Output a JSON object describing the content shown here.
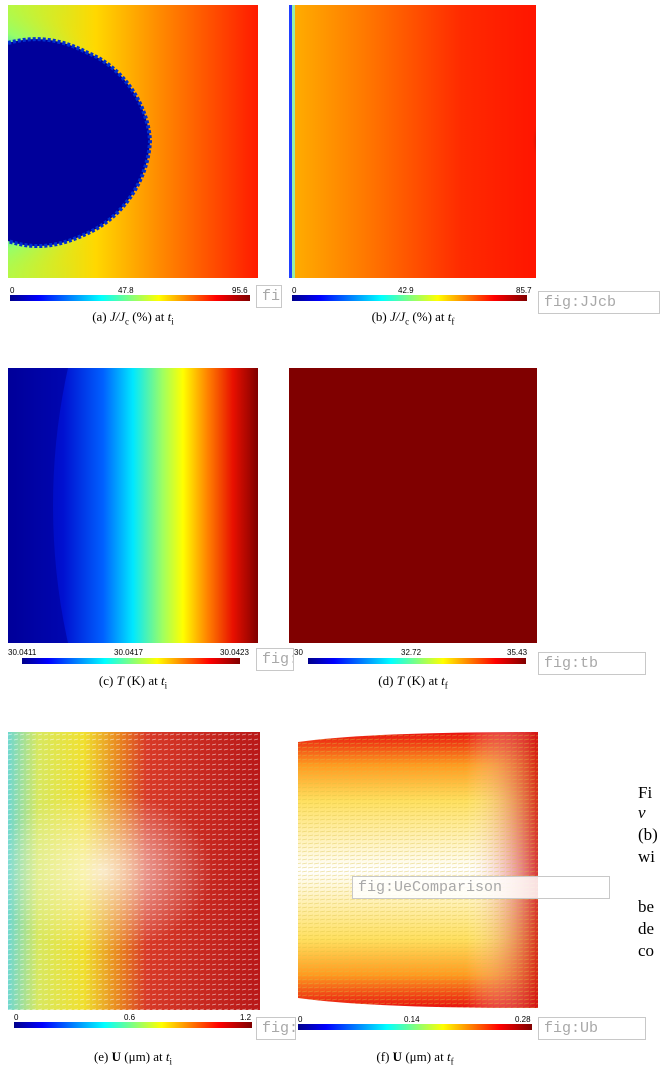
{
  "panels": {
    "a": {
      "colorbar": {
        "min": "0",
        "mid": "47.8",
        "max": "95.6"
      },
      "caption": {
        "label": "(a)",
        "quantity": "J/J",
        "qsub": "c",
        "unit": "(%) at",
        "time": "t",
        "tsub": "i"
      },
      "tag": "fig:JJca"
    },
    "b": {
      "colorbar": {
        "min": "0",
        "mid": "42.9",
        "max": "85.7"
      },
      "caption": {
        "label": "(b)",
        "quantity": "J/J",
        "qsub": "c",
        "unit": "(%) at",
        "time": "t",
        "tsub": "f"
      },
      "tag": "fig:JJcb"
    },
    "c": {
      "colorbar": {
        "min": "30.0411",
        "mid": "30.0417",
        "max": "30.0423"
      },
      "caption": {
        "label": "(c)",
        "quantity": "T",
        "unit": "(K) at",
        "time": "t",
        "tsub": "i"
      },
      "tag": "fig:ta"
    },
    "d": {
      "colorbar": {
        "min": "30",
        "mid": "32.72",
        "max": "35.43"
      },
      "caption": {
        "label": "(d)",
        "quantity": "T",
        "unit": "(K) at",
        "time": "t",
        "tsub": "f"
      },
      "tag": "fig:tb"
    },
    "e": {
      "colorbar": {
        "min": "0",
        "mid": "0.6",
        "max": "1.2"
      },
      "caption": {
        "label": "(e)",
        "quantity": "U",
        "unit": "(μm) at",
        "time": "t",
        "tsub": "i"
      },
      "tag": "fig:Ua"
    },
    "f": {
      "colorbar": {
        "min": "0",
        "mid": "0.14",
        "max": "0.28"
      },
      "caption": {
        "label": "(f)",
        "quantity": "U",
        "unit": "(μm) at",
        "time": "t",
        "tsub": "f"
      },
      "tag": "fig:Ub"
    }
  },
  "overlay_tag": "fig:UeComparison",
  "side_text": [
    "Fi",
    "ν",
    "(b)",
    "wi",
    "be",
    "de",
    "co"
  ],
  "colors": {
    "jet_dark_blue": "#00008b",
    "dark_red": "#800000",
    "tag_gray": "#a8a8a8"
  }
}
